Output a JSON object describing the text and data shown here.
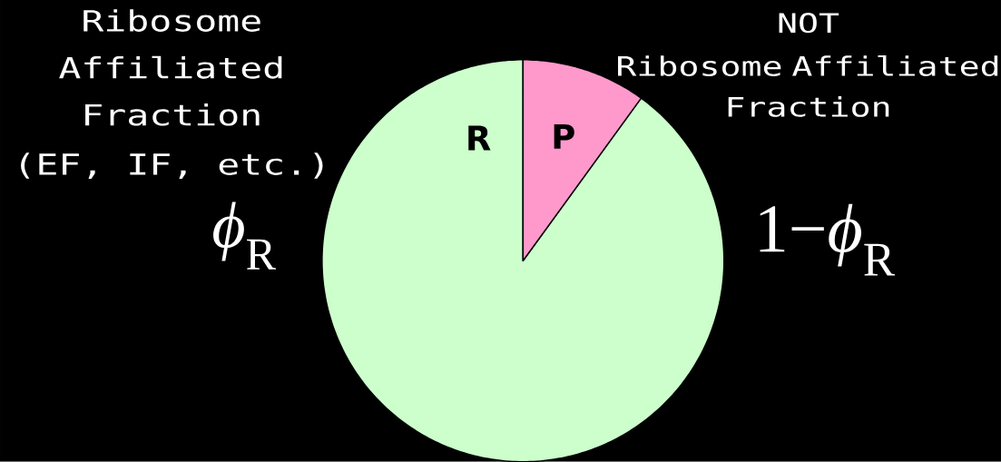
{
  "chart_data": {
    "type": "pie",
    "categories": [
      "R",
      "P"
    ],
    "values": [
      90,
      10
    ],
    "colors": [
      "#ccffcc",
      "#ff99cc"
    ],
    "annotations": [
      "Ribosome Affiliated Fraction",
      "(EF, IF, etc.)",
      "NOT",
      "Ribosome Affiliated Fraction",
      "*ϕ*$_{R}$",
      "1−*ϕ*$_{R}$"
    ]
  }
}
